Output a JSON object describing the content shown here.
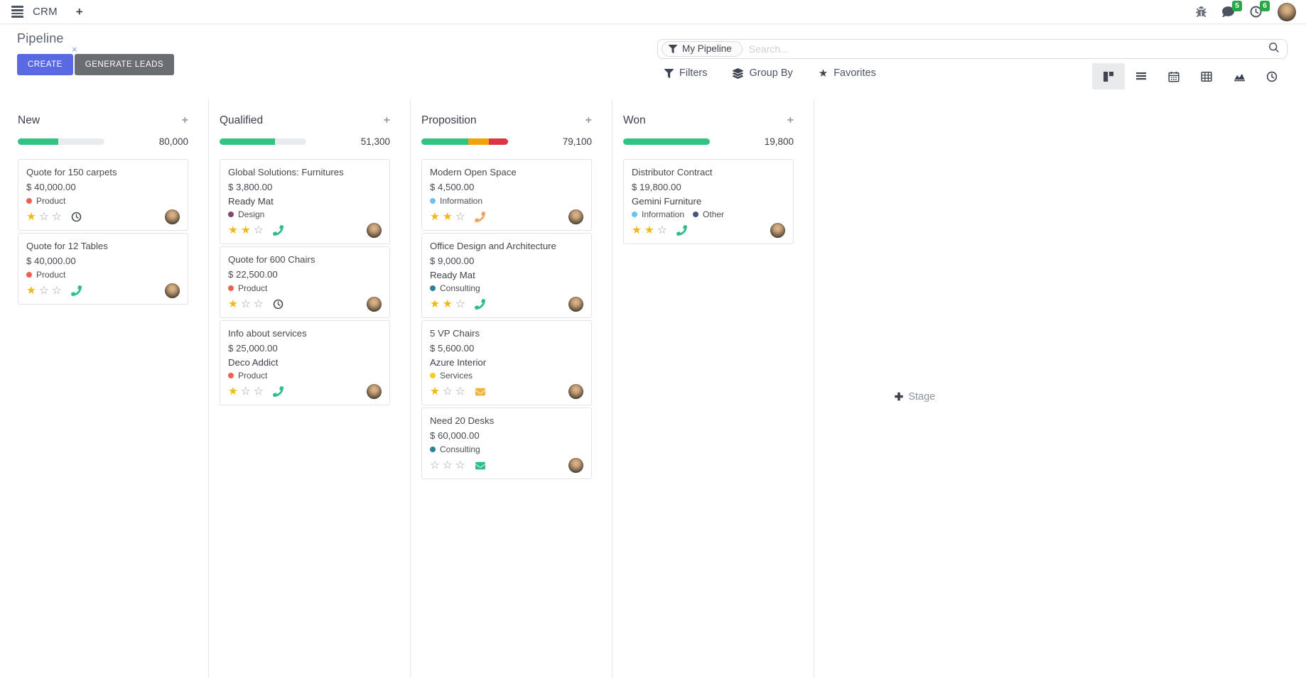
{
  "nav": {
    "app_name": "CRM",
    "messages_badge": "5",
    "activities_badge": "6",
    "icons": [
      "apps-menu-icon",
      "add-icon",
      "bug-icon",
      "messages-icon",
      "activities-icon",
      "avatar"
    ]
  },
  "control_panel": {
    "title": "Pipeline",
    "create_label": "CREATE",
    "generate_leads_label": "GENERATE LEADS",
    "search": {
      "facet": "My Pipeline",
      "placeholder": "Search...",
      "facet_remove": "×"
    },
    "menus": [
      "Filters",
      "Group By",
      "Favorites"
    ]
  },
  "view_switcher": [
    "kanban",
    "list",
    "calendar",
    "pivot",
    "graph",
    "activity"
  ],
  "colors": {
    "accent": "#5869e2",
    "secondary_button": "#6a6e73",
    "badge_green": "#28a745",
    "progress_green": "#30c381",
    "progress_orange": "#f0a30a",
    "progress_red": "#dc3545",
    "star_gold": "#efb90f"
  },
  "board": {
    "add_stage_label": "Stage",
    "columns": [
      {
        "name": "New",
        "total": "80,000",
        "progress": [
          {
            "color": "#30c381",
            "pct": 47
          }
        ],
        "cards": [
          {
            "title": "Quote for 150 carpets",
            "amount": "$ 40,000.00",
            "partner": null,
            "tags": [
              {
                "label": "Product",
                "color": "#f06050"
              }
            ],
            "stars": 1,
            "activity": {
              "type": "clock",
              "color": "#495057"
            }
          },
          {
            "title": "Quote for 12 Tables",
            "amount": "$ 40,000.00",
            "partner": null,
            "tags": [
              {
                "label": "Product",
                "color": "#f06050"
              }
            ],
            "stars": 1,
            "activity": {
              "type": "phone",
              "color": "#2ebe8c"
            }
          }
        ]
      },
      {
        "name": "Qualified",
        "total": "51,300",
        "progress": [
          {
            "color": "#30c381",
            "pct": 64
          }
        ],
        "cards": [
          {
            "title": "Global Solutions: Furnitures",
            "amount": "$ 3,800.00",
            "partner": "Ready Mat",
            "tags": [
              {
                "label": "Design",
                "color": "#814968"
              }
            ],
            "stars": 2,
            "activity": {
              "type": "phone",
              "color": "#2ebe8c"
            }
          },
          {
            "title": "Quote for 600 Chairs",
            "amount": "$ 22,500.00",
            "partner": null,
            "tags": [
              {
                "label": "Product",
                "color": "#f06050"
              }
            ],
            "stars": 1,
            "activity": {
              "type": "clock",
              "color": "#495057"
            }
          },
          {
            "title": "Info about services",
            "amount": "$ 25,000.00",
            "partner": "Deco Addict",
            "tags": [
              {
                "label": "Product",
                "color": "#f06050"
              }
            ],
            "stars": 1,
            "activity": {
              "type": "phone",
              "color": "#2ebe8c"
            }
          }
        ]
      },
      {
        "name": "Proposition",
        "total": "79,100",
        "progress": [
          {
            "color": "#30c381",
            "pct": 54
          },
          {
            "color": "#f0a30a",
            "pct": 24
          },
          {
            "color": "#dc3545",
            "pct": 22
          }
        ],
        "cards": [
          {
            "title": "Modern Open Space",
            "amount": "$ 4,500.00",
            "partner": null,
            "tags": [
              {
                "label": "Information",
                "color": "#6cc1ed"
              }
            ],
            "stars": 2,
            "activity": {
              "type": "phone",
              "color": "#f0a45e"
            }
          },
          {
            "title": "Office Design and Architecture",
            "amount": "$ 9,000.00",
            "partner": "Ready Mat",
            "tags": [
              {
                "label": "Consulting",
                "color": "#2c8397"
              }
            ],
            "stars": 2,
            "activity": {
              "type": "phone",
              "color": "#2ebe8c"
            }
          },
          {
            "title": "5 VP Chairs",
            "amount": "$ 5,600.00",
            "partner": "Azure Interior",
            "tags": [
              {
                "label": "Services",
                "color": "#f7cd1f"
              }
            ],
            "stars": 1,
            "activity": {
              "type": "envelope",
              "color": "#f2b33d"
            }
          },
          {
            "title": "Need 20 Desks",
            "amount": "$ 60,000.00",
            "partner": null,
            "tags": [
              {
                "label": "Consulting",
                "color": "#2c8397"
              }
            ],
            "stars": 0,
            "activity": {
              "type": "envelope",
              "color": "#2ebe8c"
            }
          }
        ]
      },
      {
        "name": "Won",
        "total": "19,800",
        "progress": [
          {
            "color": "#30c381",
            "pct": 100
          }
        ],
        "cards": [
          {
            "title": "Distributor Contract",
            "amount": "$ 19,800.00",
            "partner": "Gemini Furniture",
            "tags": [
              {
                "label": "Information",
                "color": "#6cc1ed"
              },
              {
                "label": "Other",
                "color": "#475577"
              }
            ],
            "stars": 2,
            "activity": {
              "type": "phone",
              "color": "#2ebe8c"
            }
          }
        ]
      }
    ]
  }
}
